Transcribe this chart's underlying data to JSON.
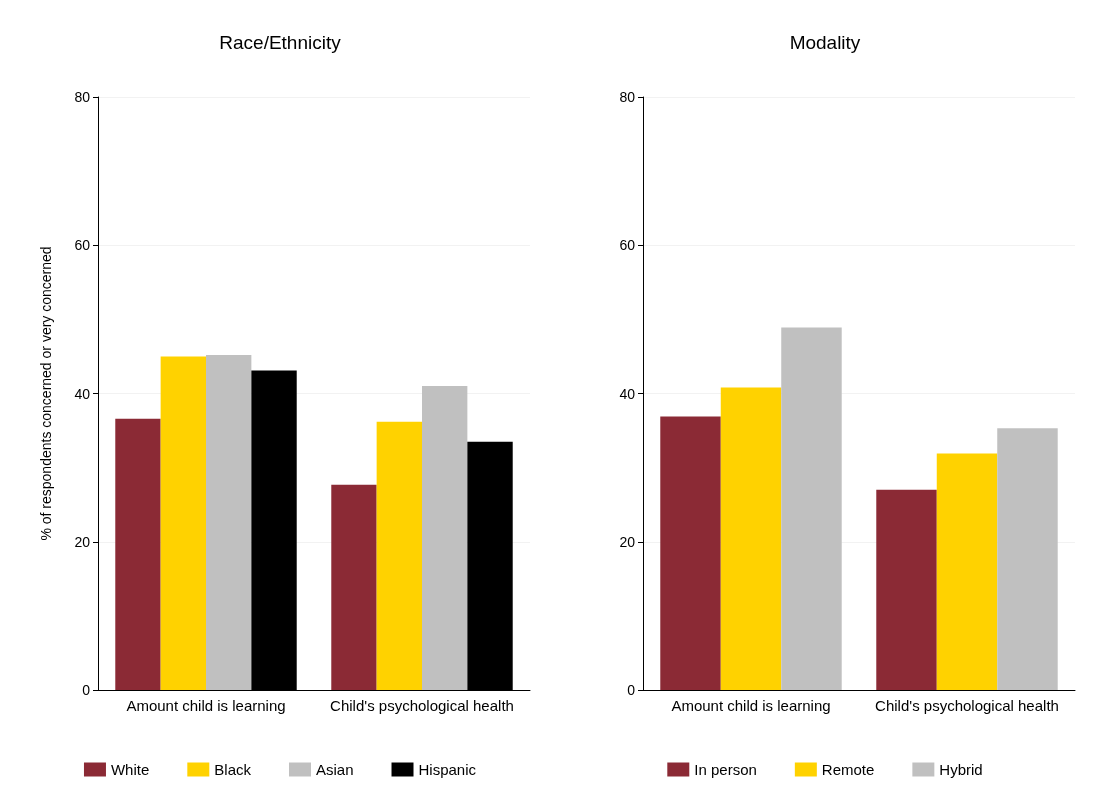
{
  "chart_data": [
    {
      "type": "bar",
      "title": "Race/Ethnicity",
      "ylabel": "% of respondents concerned or very concerned",
      "categories": [
        "Amount child is learning",
        "Child's psychological health"
      ],
      "series": [
        {
          "name": "White",
          "color": "#8b2a35",
          "values": [
            36.6,
            27.7
          ]
        },
        {
          "name": "Black",
          "color": "#ffd200",
          "values": [
            45.0,
            36.2
          ]
        },
        {
          "name": "Asian",
          "color": "#c0c0c0",
          "values": [
            45.2,
            41.0
          ]
        },
        {
          "name": "Hispanic",
          "color": "#000000",
          "values": [
            43.1,
            33.5
          ]
        }
      ],
      "ylim": [
        0,
        80
      ],
      "yticks": [
        0,
        20,
        40,
        60,
        80
      ],
      "grid": "y",
      "legend": "bottom"
    },
    {
      "type": "bar",
      "title": "Modality",
      "categories": [
        "Amount child is learning",
        "Child's psychological health"
      ],
      "series": [
        {
          "name": "In person",
          "color": "#8b2a35",
          "values": [
            36.9,
            27.0
          ]
        },
        {
          "name": "Remote",
          "color": "#ffd200",
          "values": [
            40.8,
            31.9
          ]
        },
        {
          "name": "Hybrid",
          "color": "#c0c0c0",
          "values": [
            48.9,
            35.3
          ]
        }
      ],
      "ylim": [
        0,
        80
      ],
      "yticks": [
        0,
        20,
        40,
        60,
        80
      ],
      "grid": "y",
      "legend": "bottom"
    }
  ]
}
